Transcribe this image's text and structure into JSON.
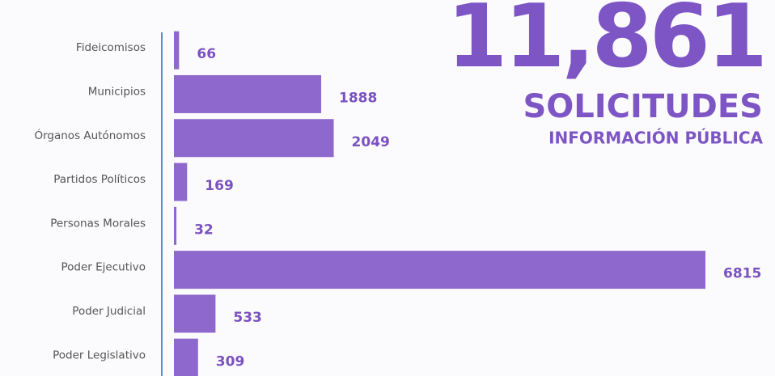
{
  "chart_data": {
    "type": "bar",
    "orientation": "horizontal",
    "title": "11,861",
    "subtitle": "SOLICITUDES",
    "caption": "INFORMACIÓN PÚBLICA",
    "categories": [
      "Fideicomisos",
      "Municipios",
      "Órganos Autónomos",
      "Partidos Políticos",
      "Personas Morales",
      "Poder Ejecutivo",
      "Poder Judicial",
      "Poder Legislativo"
    ],
    "values": [
      66,
      1888,
      2049,
      169,
      32,
      6815,
      533,
      309
    ],
    "color": "#8e68cc"
  }
}
